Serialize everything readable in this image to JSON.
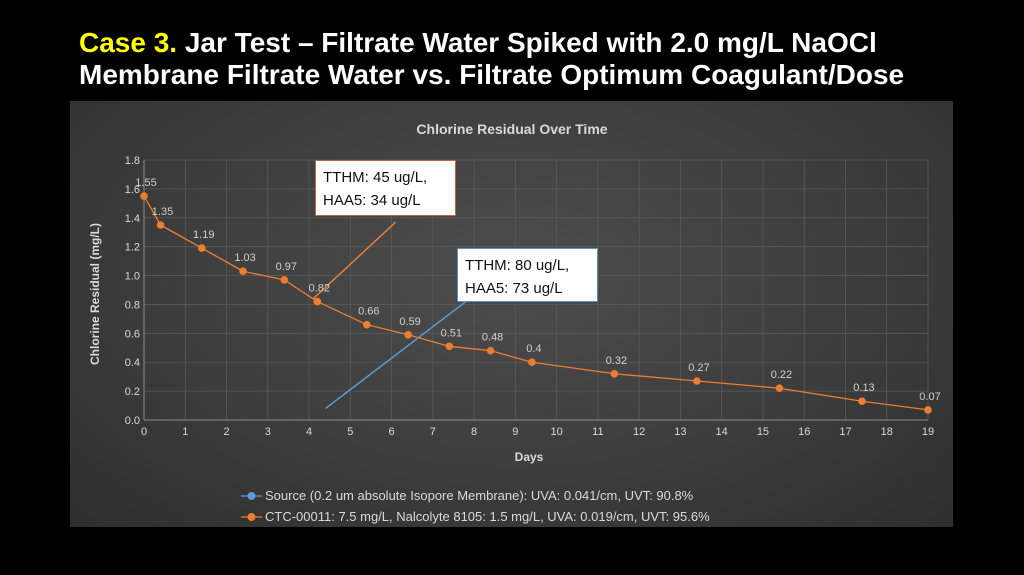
{
  "slide": {
    "title_accent": "Case 3.",
    "title_rest": " Jar Test – Filtrate Water Spiked with 2.0 mg/L NaOCl",
    "title_line2": "Membrane Filtrate Water vs. Filtrate Optimum Coagulant/Dose",
    "accent_color": "#ffff00"
  },
  "callouts": [
    {
      "lines": [
        "TTHM: 45 ug/L,",
        "HAA5: 34 ug/L"
      ],
      "border_color": "#c0693a"
    },
    {
      "lines": [
        "TTHM: 80 ug/L,",
        "HAA5: 73 ug/L"
      ],
      "border_color": "#5b8fc9"
    }
  ],
  "chart_data": {
    "type": "scatter",
    "title": "Chlorine Residual Over Time",
    "xlabel": "Days",
    "ylabel": "Chlorine Residual (mg/L)",
    "xlim": [
      0,
      19
    ],
    "ylim": [
      0,
      1.8
    ],
    "x_ticks": [
      "0",
      "1",
      "2",
      "3",
      "4",
      "5",
      "6",
      "7",
      "8",
      "9",
      "10",
      "11",
      "12",
      "13",
      "14",
      "15",
      "16",
      "17",
      "18",
      "19"
    ],
    "y_ticks": [
      "0.0",
      "0.2",
      "0.4",
      "0.6",
      "0.8",
      "1.0",
      "1.2",
      "1.4",
      "1.6",
      "1.8"
    ],
    "grid": true,
    "legend_position": "bottom",
    "series": [
      {
        "name": "Source (0.2 um absolute Isopore Membrane): UVA: 0.041/cm, UVT: 90.8%",
        "color": "#5b9bd5",
        "x": [],
        "y": [],
        "labels": []
      },
      {
        "name": "CTC-00011: 7.5 mg/L, Nalcolyte 8105: 1.5 mg/L, UVA: 0.019/cm, UVT: 95.6%",
        "color": "#ed7d31",
        "x": [
          0,
          0.4,
          1.4,
          2.4,
          3.4,
          4.2,
          5.4,
          6.4,
          7.4,
          8.4,
          9.4,
          11.4,
          13.4,
          15.4,
          17.4,
          19
        ],
        "y": [
          1.55,
          1.35,
          1.19,
          1.03,
          0.97,
          0.82,
          0.66,
          0.59,
          0.51,
          0.48,
          0.4,
          0.32,
          0.27,
          0.22,
          0.13,
          0.07
        ],
        "labels": [
          "1.55",
          "1.35",
          "1.19",
          "1.03",
          "0.97",
          "0.82",
          "0.66",
          "0.59",
          "0.51",
          "0.48",
          "0.4",
          "0.32",
          "0.27",
          "0.22",
          "0.13",
          "0.07"
        ]
      }
    ],
    "annotation_lines": [
      {
        "color": "#ed7d31",
        "from": [
          4.1,
          0.84
        ],
        "to": [
          6.1,
          1.37
        ]
      },
      {
        "color": "#5b9bd5",
        "from": [
          4.4,
          0.08
        ],
        "to": [
          7.8,
          0.82
        ]
      }
    ]
  }
}
